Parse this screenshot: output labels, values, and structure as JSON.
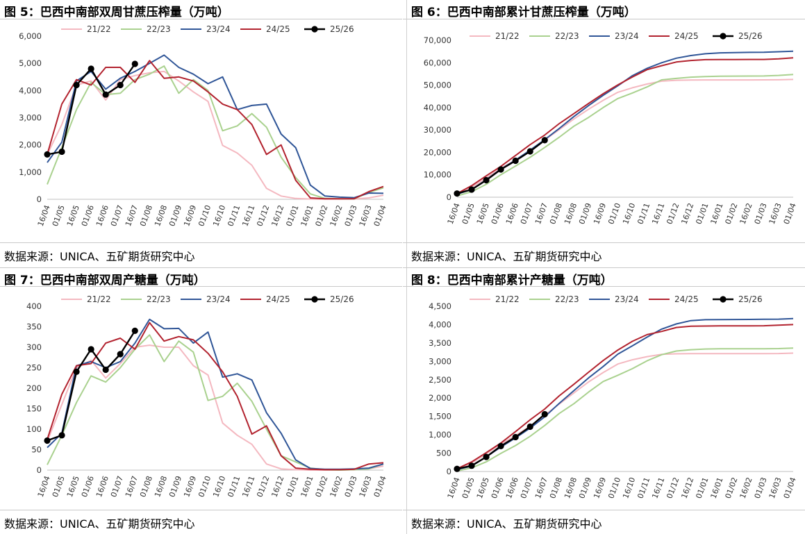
{
  "source_text": "数据来源：UNICA、五矿期货研究中心",
  "categories": [
    "16/04",
    "01/05",
    "16/05",
    "01/06",
    "16/06",
    "01/07",
    "16/07",
    "01/08",
    "16/08",
    "01/09",
    "16/09",
    "01/10",
    "16/10",
    "01/11",
    "16/11",
    "01/12",
    "16/12",
    "01/01",
    "16/01",
    "01/02",
    "16/02",
    "01/03",
    "16/03",
    "01/04"
  ],
  "colors": {
    "s2122": "#f4b8c0",
    "s2223": "#a9d18e",
    "s2324": "#2f5597",
    "s2425": "#b2222e",
    "s2526": "#000000"
  },
  "chart_data": [
    {
      "id": "fig5",
      "type": "line",
      "title": "图 5：巴西中南部双周甘蔗压榨量（万吨）",
      "ylim": [
        0,
        6000
      ],
      "yticks": [
        0,
        1000,
        2000,
        3000,
        4000,
        5000,
        6000
      ],
      "ytick_labels": [
        "0",
        "1,000",
        "2,000",
        "3,000",
        "4,000",
        "5,000",
        "6,000"
      ],
      "series": [
        {
          "name": "21/22",
          "values": [
            1650,
            2750,
            4200,
            4350,
            3650,
            4400,
            4550,
            4650,
            4700,
            4350,
            3950,
            3600,
            1980,
            1700,
            1250,
            400,
            120,
            30,
            10,
            5,
            5,
            10,
            50,
            150
          ]
        },
        {
          "name": "22/23",
          "values": [
            550,
            1900,
            3300,
            4300,
            3850,
            3900,
            4400,
            4600,
            4900,
            3900,
            4400,
            4000,
            2520,
            2700,
            3150,
            2650,
            1550,
            800,
            200,
            30,
            20,
            15,
            250,
            420
          ]
        },
        {
          "name": "23/24",
          "values": [
            1350,
            2100,
            4350,
            4700,
            4050,
            4450,
            4700,
            5000,
            5300,
            4850,
            4600,
            4250,
            4500,
            3300,
            3450,
            3500,
            2400,
            1900,
            520,
            120,
            80,
            60,
            230,
            220
          ]
        },
        {
          "name": "24/25",
          "values": [
            1650,
            3500,
            4400,
            4200,
            4850,
            4850,
            4300,
            5100,
            4450,
            4500,
            4350,
            3950,
            3500,
            3300,
            2750,
            1650,
            2000,
            700,
            50,
            20,
            20,
            20,
            280,
            470
          ]
        },
        {
          "name": "25/26",
          "values": [
            1650,
            1750,
            4200,
            4800,
            3850,
            4200,
            4980,
            null,
            null,
            null,
            null,
            null,
            null,
            null,
            null,
            null,
            null,
            null,
            null,
            null,
            null,
            null,
            null,
            null
          ]
        }
      ]
    },
    {
      "id": "fig6",
      "type": "line",
      "title": "图 6：巴西中南部累计甘蔗压榨量（万吨）",
      "ylim": [
        0,
        70000
      ],
      "yticks": [
        0,
        10000,
        20000,
        30000,
        40000,
        50000,
        60000,
        70000
      ],
      "ytick_labels": [
        "0",
        "10,000",
        "20,000",
        "30,000",
        "40,000",
        "50,000",
        "60,000",
        "70,000"
      ],
      "series": [
        {
          "name": "21/22",
          "values": [
            1650,
            4400,
            8600,
            12950,
            16600,
            21000,
            25550,
            30200,
            34900,
            39250,
            43200,
            46800,
            48800,
            50500,
            51750,
            52150,
            52270,
            52300,
            52310,
            52315,
            52320,
            52330,
            52380,
            52530
          ]
        },
        {
          "name": "22/23",
          "values": [
            550,
            2450,
            5750,
            10050,
            13900,
            17800,
            22200,
            26800,
            31700,
            35600,
            40000,
            44000,
            46500,
            49200,
            52350,
            53000,
            53550,
            53800,
            54000,
            54030,
            54050,
            54065,
            54315,
            54735
          ]
        },
        {
          "name": "23/24",
          "values": [
            1350,
            3450,
            7800,
            12500,
            16550,
            21000,
            25700,
            30700,
            36000,
            40850,
            45450,
            49700,
            54200,
            57500,
            60000,
            62000,
            63200,
            64000,
            64400,
            64520,
            64600,
            64660,
            64890,
            65110
          ]
        },
        {
          "name": "24/25",
          "values": [
            1650,
            5150,
            9550,
            13750,
            18600,
            23450,
            27750,
            32850,
            37300,
            41800,
            46150,
            50100,
            53600,
            56900,
            58650,
            60300,
            61000,
            61350,
            61400,
            61420,
            61440,
            61460,
            61740,
            62210
          ]
        },
        {
          "name": "25/26",
          "values": [
            1650,
            3400,
            7600,
            12400,
            16250,
            20450,
            25430,
            null,
            null,
            null,
            null,
            null,
            null,
            null,
            null,
            null,
            null,
            null,
            null,
            null,
            null,
            null,
            null,
            null
          ]
        }
      ]
    },
    {
      "id": "fig7",
      "type": "line",
      "title": "图 7：巴西中南部双周产糖量（万吨）",
      "ylim": [
        0,
        400
      ],
      "yticks": [
        0,
        50,
        100,
        150,
        200,
        250,
        300,
        350,
        400
      ],
      "ytick_labels": [
        "0",
        "50",
        "100",
        "150",
        "200",
        "250",
        "300",
        "350",
        "400"
      ],
      "series": [
        {
          "name": "21/22",
          "values": [
            70,
            160,
            250,
            268,
            225,
            260,
            300,
            305,
            300,
            300,
            255,
            232,
            115,
            85,
            63,
            15,
            3,
            1,
            0,
            0,
            0,
            1,
            3,
            10
          ]
        },
        {
          "name": "22/23",
          "values": [
            13,
            85,
            165,
            230,
            215,
            250,
            295,
            330,
            265,
            315,
            288,
            170,
            180,
            212,
            168,
            100,
            35,
            20,
            5,
            1,
            0,
            1,
            3,
            15
          ]
        },
        {
          "name": "23/24",
          "values": [
            55,
            90,
            255,
            265,
            250,
            265,
            310,
            368,
            345,
            346,
            310,
            337,
            227,
            235,
            220,
            140,
            90,
            25,
            4,
            2,
            2,
            3,
            5,
            15
          ]
        },
        {
          "name": "24/25",
          "values": [
            75,
            185,
            255,
            260,
            310,
            322,
            295,
            360,
            315,
            326,
            318,
            285,
            240,
            180,
            88,
            108,
            35,
            5,
            2,
            1,
            1,
            2,
            15,
            18
          ]
        },
        {
          "name": "25/26",
          "values": [
            72,
            85,
            240,
            295,
            245,
            283,
            340,
            null,
            null,
            null,
            null,
            null,
            null,
            null,
            null,
            null,
            null,
            null,
            null,
            null,
            null,
            null,
            null,
            null
          ]
        }
      ]
    },
    {
      "id": "fig8",
      "type": "line",
      "title": "图 8：巴西中南部累计产糖量（万吨）",
      "ylim": [
        0,
        4500
      ],
      "yticks": [
        0,
        500,
        1000,
        1500,
        2000,
        2500,
        3000,
        3500,
        4000,
        4500
      ],
      "ytick_labels": [
        "0",
        "500",
        "1,000",
        "1,500",
        "2,000",
        "2,500",
        "3,000",
        "3,500",
        "4,000",
        "4,500"
      ],
      "series": [
        {
          "name": "21/22",
          "values": [
            70,
            230,
            480,
            750,
            975,
            1235,
            1535,
            1840,
            2140,
            2440,
            2695,
            2927,
            3042,
            3127,
            3190,
            3205,
            3208,
            3209,
            3209,
            3209,
            3209,
            3210,
            3213,
            3223
          ]
        },
        {
          "name": "22/23",
          "values": [
            13,
            98,
            263,
            493,
            708,
            958,
            1253,
            1583,
            1848,
            2163,
            2451,
            2621,
            2801,
            3013,
            3181,
            3281,
            3316,
            3336,
            3341,
            3342,
            3342,
            3343,
            3346,
            3361
          ]
        },
        {
          "name": "23/24",
          "values": [
            55,
            145,
            400,
            665,
            915,
            1180,
            1490,
            1858,
            2203,
            2549,
            2859,
            3196,
            3423,
            3658,
            3878,
            4018,
            4108,
            4133,
            4137,
            4139,
            4141,
            4144,
            4149,
            4164
          ]
        },
        {
          "name": "24/25",
          "values": [
            75,
            260,
            515,
            775,
            1085,
            1407,
            1702,
            2062,
            2377,
            2703,
            3021,
            3306,
            3546,
            3726,
            3814,
            3922,
            3957,
            3962,
            3964,
            3965,
            3966,
            3968,
            3983,
            4001
          ]
        },
        {
          "name": "25/26",
          "values": [
            72,
            157,
            397,
            692,
            937,
            1220,
            1560,
            null,
            null,
            null,
            null,
            null,
            null,
            null,
            null,
            null,
            null,
            null,
            null,
            null,
            null,
            null,
            null,
            null
          ]
        }
      ]
    }
  ]
}
